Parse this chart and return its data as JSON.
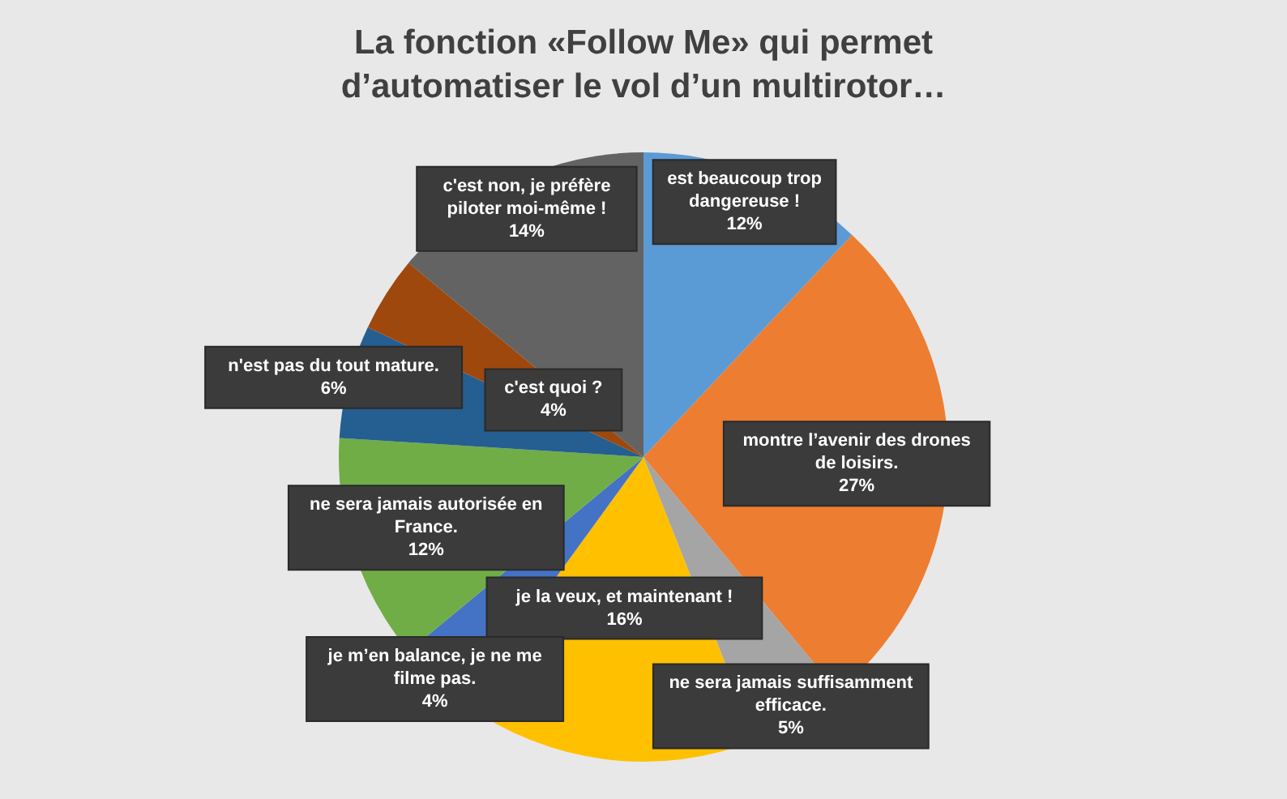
{
  "chart_data": {
    "type": "pie",
    "title": "La fonction «Follow Me» qui permet d’automatiser le vol d’un multirotor…",
    "categories": [
      "est beaucoup trop dangereuse !",
      "montre l’avenir des drones de loisirs.",
      "ne sera jamais suffisamment efficace.",
      "je la veux, et maintenant !",
      "je m’en balance, je ne me filme pas.",
      "ne sera jamais autorisée en France.",
      "n'est pas du tout mature.",
      "c'est quoi ?",
      "c'est non, je préfère piloter moi-même !"
    ],
    "values": [
      12,
      27,
      5,
      16,
      4,
      12,
      6,
      4,
      14
    ],
    "colors": [
      "#5b9bd5",
      "#ed7d31",
      "#a5a5a5",
      "#ffc000",
      "#4472c4",
      "#70ad47",
      "#255e91",
      "#9e480e",
      "#636363"
    ],
    "value_labels": [
      "12%",
      "27%",
      "5%",
      "16%",
      "4%",
      "12%",
      "6%",
      "4%",
      "14%"
    ]
  }
}
